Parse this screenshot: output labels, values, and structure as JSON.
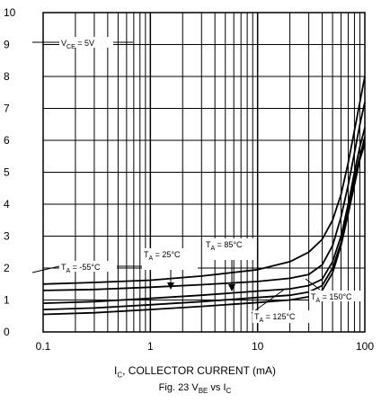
{
  "chart_data": {
    "type": "line",
    "x_scale": "log",
    "xlim": [
      0.1,
      100
    ],
    "ylim": [
      0,
      10
    ],
    "grid": true,
    "x_ticks": [
      "0.1",
      "1",
      "10",
      "100"
    ],
    "y_ticks": [
      "0",
      "1",
      "2",
      "3",
      "4",
      "5",
      "6",
      "7",
      "8",
      "9",
      "10"
    ],
    "xlabel": {
      "main": "I",
      "sub": "C",
      "rest": ", COLLECTOR CURRENT (mA)"
    },
    "caption": {
      "pre": "Fig. 23  V",
      "sub1": "BE",
      "mid": " vs I",
      "sub2": "C"
    },
    "annotations": [
      {
        "id": "vce",
        "pre": "V",
        "sub": "CE",
        "post": " = 5V"
      },
      {
        "id": "t-55",
        "pre": "T",
        "sub": "A",
        "post": " = -55°C"
      },
      {
        "id": "t25",
        "pre": "T",
        "sub": "A",
        "post": " = 25°C"
      },
      {
        "id": "t85",
        "pre": "T",
        "sub": "A",
        "post": " = 85°C"
      },
      {
        "id": "t125",
        "pre": "T",
        "sub": "A",
        "post": " = 125°C"
      },
      {
        "id": "t150",
        "pre": "T",
        "sub": "A",
        "post": " = 150°C"
      }
    ],
    "series": [
      {
        "name": "TA = -55°C",
        "x": [
          0.1,
          0.3,
          1,
          3,
          10,
          20,
          30,
          40,
          50,
          60,
          70,
          80,
          90,
          100
        ],
        "y": [
          1.5,
          1.55,
          1.62,
          1.75,
          1.95,
          2.2,
          2.5,
          2.9,
          3.5,
          4.3,
          5.3,
          6.3,
          7.2,
          8.0
        ]
      },
      {
        "name": "TA = 25°C",
        "x": [
          0.1,
          0.3,
          1,
          3,
          10,
          20,
          30,
          40,
          50,
          60,
          70,
          80,
          90,
          100
        ],
        "y": [
          1.3,
          1.33,
          1.4,
          1.48,
          1.58,
          1.68,
          1.8,
          2.1,
          2.7,
          3.6,
          4.6,
          5.6,
          6.5,
          7.2
        ]
      },
      {
        "name": "TA = 85°C",
        "x": [
          0.1,
          0.3,
          1,
          3,
          10,
          20,
          30,
          40,
          50,
          60,
          70,
          80,
          90,
          100
        ],
        "y": [
          0.9,
          0.95,
          1.05,
          1.15,
          1.28,
          1.35,
          1.45,
          1.65,
          2.2,
          3.0,
          4.0,
          5.0,
          5.8,
          6.4
        ]
      },
      {
        "name": "TA = 125°C",
        "x": [
          0.1,
          0.3,
          1,
          3,
          10,
          20,
          30,
          40,
          50,
          60,
          70,
          80,
          90,
          100
        ],
        "y": [
          0.7,
          0.75,
          0.85,
          0.95,
          1.08,
          1.15,
          1.25,
          1.45,
          2.0,
          2.8,
          3.8,
          4.8,
          5.5,
          6.1
        ]
      },
      {
        "name": "TA = 150°C",
        "x": [
          0.1,
          0.3,
          1,
          3,
          10,
          20,
          30,
          40,
          50,
          60,
          70,
          80,
          90,
          100
        ],
        "y": [
          0.55,
          0.6,
          0.7,
          0.8,
          0.92,
          1.0,
          1.1,
          1.3,
          1.85,
          2.7,
          3.7,
          4.6,
          5.4,
          5.9
        ]
      }
    ]
  }
}
